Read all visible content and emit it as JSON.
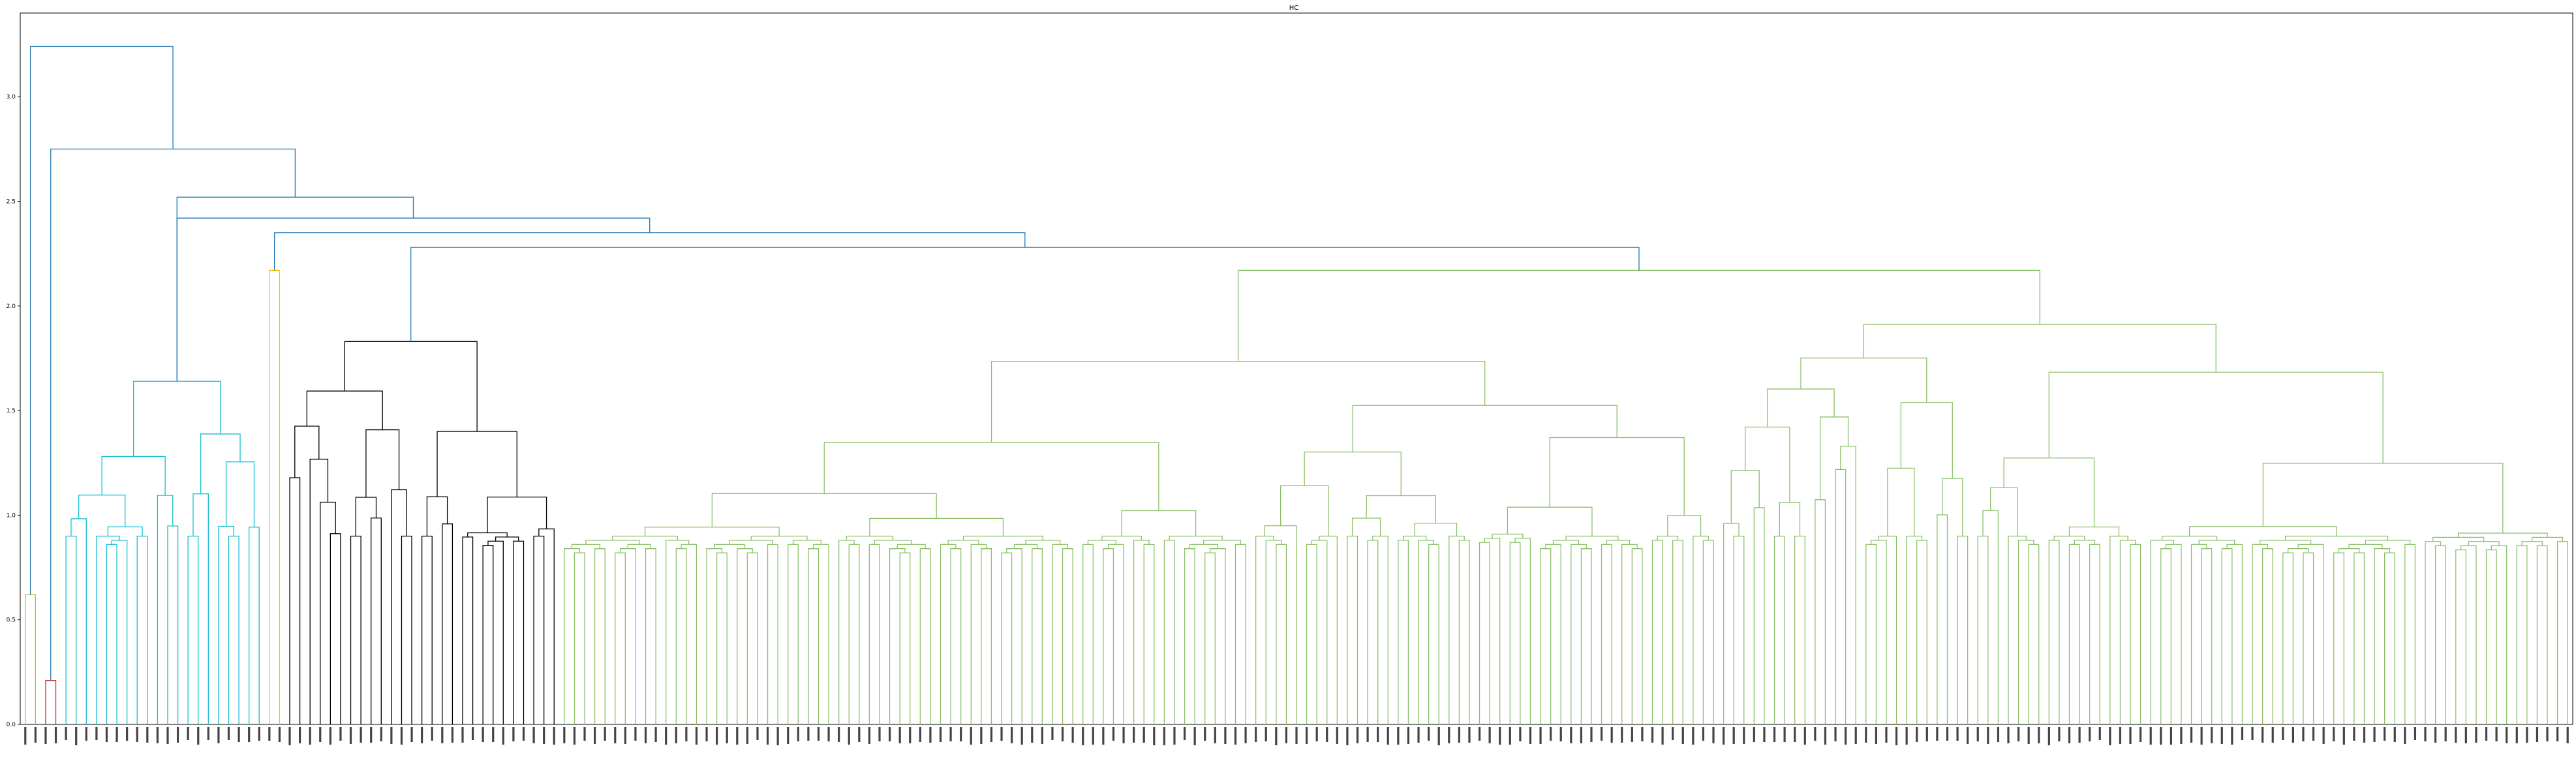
{
  "chart_data": {
    "type": "dendrogram",
    "title": "HC",
    "xlabel": "",
    "ylabel": "",
    "ylim": [
      0,
      3.4
    ],
    "yticks": [
      0.0,
      0.5,
      1.0,
      1.5,
      2.0,
      2.5,
      3.0
    ],
    "ytick_labels": [
      "0.0",
      "0.5",
      "1.0",
      "1.5",
      "2.0",
      "2.5",
      "3.0"
    ],
    "grid": false,
    "legend": "none",
    "leaf_label_note": "leaf labels (rotated 90°, tiny, illegible)",
    "colors": {
      "above_threshold": "#1f77b4",
      "olive": "#bcbd22",
      "red": "#d62728",
      "cyan": "#17becf",
      "gold": "#ffbf00",
      "black": "#000000",
      "green": "#8cc06a"
    },
    "top_merges": [
      {
        "height": 3.24,
        "color": "above_threshold"
      },
      {
        "height": 2.75,
        "color": "above_threshold"
      },
      {
        "height": 2.52,
        "color": "above_threshold"
      },
      {
        "height": 2.42,
        "color": "above_threshold"
      },
      {
        "height": 2.35,
        "color": "above_threshold"
      },
      {
        "height": 2.28,
        "color": "above_threshold"
      }
    ],
    "clusters": [
      {
        "color": "olive",
        "leaves": 2,
        "merge_height": 0.62
      },
      {
        "color": "red",
        "leaves": 2,
        "merge_height": 0.21
      },
      {
        "color": "cyan",
        "leaves": 20,
        "merge_height": 1.64
      },
      {
        "color": "gold",
        "leaves": 2,
        "merge_height": 2.17
      },
      {
        "color": "black",
        "leaves": 27,
        "merge_height": 1.83
      },
      {
        "color": "green",
        "leaves": 198,
        "merge_height": 2.17
      }
    ]
  }
}
